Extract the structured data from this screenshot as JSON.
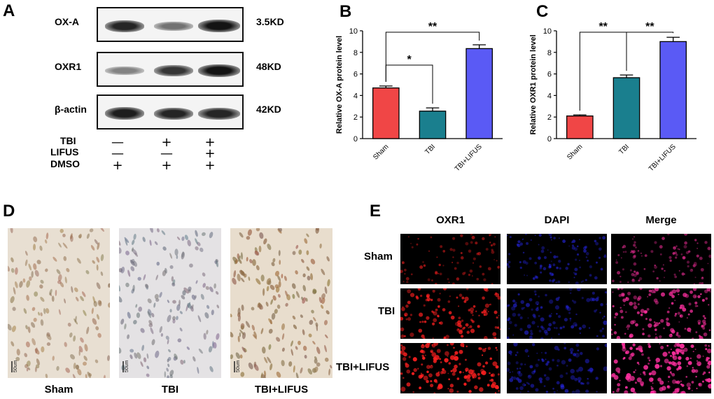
{
  "panels": {
    "a": "A",
    "b": "B",
    "c": "C",
    "d": "D",
    "e": "E"
  },
  "western": {
    "rows": [
      {
        "protein": "OX-A",
        "size": "3.5KD",
        "intensity": [
          0.9,
          0.45,
          1.0
        ]
      },
      {
        "protein": "OXR1",
        "size": "48KD",
        "intensity": [
          0.35,
          0.8,
          1.0
        ]
      },
      {
        "protein": "β-actin",
        "size": "42KD",
        "intensity": [
          0.95,
          0.9,
          0.9
        ]
      }
    ],
    "conditions": [
      {
        "name": "TBI",
        "marks": [
          "—",
          "+",
          "+"
        ]
      },
      {
        "name": "LIFUS",
        "marks": [
          "—",
          "—",
          "+"
        ]
      },
      {
        "name": "DMSO",
        "marks": [
          "+",
          "+",
          "+"
        ]
      }
    ]
  },
  "chart_data": [
    {
      "type": "bar",
      "categories": [
        "Sham",
        "TBI",
        "TBI+LIFUS"
      ],
      "values": [
        4.7,
        2.55,
        8.35
      ],
      "errors": [
        0.18,
        0.3,
        0.35
      ],
      "colors": [
        "#f04646",
        "#1a7f8e",
        "#5a5af5"
      ],
      "ylabel": "Relative OX-A protein level",
      "ylim": [
        0,
        10
      ],
      "yticks": [
        0,
        2,
        4,
        6,
        8,
        10
      ],
      "significance": [
        {
          "from": 0,
          "to": 1,
          "label": "*"
        },
        {
          "from": 0,
          "to": 2,
          "label": "**"
        }
      ]
    },
    {
      "type": "bar",
      "categories": [
        "Sham",
        "TBI",
        "TBI+LIFUS"
      ],
      "values": [
        2.1,
        5.65,
        9.0
      ],
      "errors": [
        0.1,
        0.25,
        0.4
      ],
      "colors": [
        "#f04646",
        "#1a7f8e",
        "#5a5af5"
      ],
      "ylabel": "Relative OXR1 protein level",
      "ylim": [
        0,
        10
      ],
      "yticks": [
        0,
        2,
        4,
        6,
        8,
        10
      ],
      "significance": [
        {
          "from": 0,
          "to": 1,
          "label": "**"
        },
        {
          "from": 1,
          "to": 2,
          "label": "**"
        }
      ]
    }
  ],
  "ihc": {
    "scale_bar": "50um",
    "captions": [
      "Sham",
      "TBI",
      "TBI+LIFUS"
    ],
    "density": [
      0.4,
      0.55,
      0.75
    ]
  },
  "fluorescence": {
    "columns": [
      "OXR1",
      "DAPI",
      "Merge"
    ],
    "rows": [
      "Sham",
      "TBI",
      "TBI+LIFUS"
    ],
    "oxr1_intensity": [
      0.35,
      0.75,
      1.0
    ],
    "colors": {
      "oxr1": "#ff2020",
      "dapi": "#2a2aff",
      "merge": "#ff30a0"
    }
  }
}
